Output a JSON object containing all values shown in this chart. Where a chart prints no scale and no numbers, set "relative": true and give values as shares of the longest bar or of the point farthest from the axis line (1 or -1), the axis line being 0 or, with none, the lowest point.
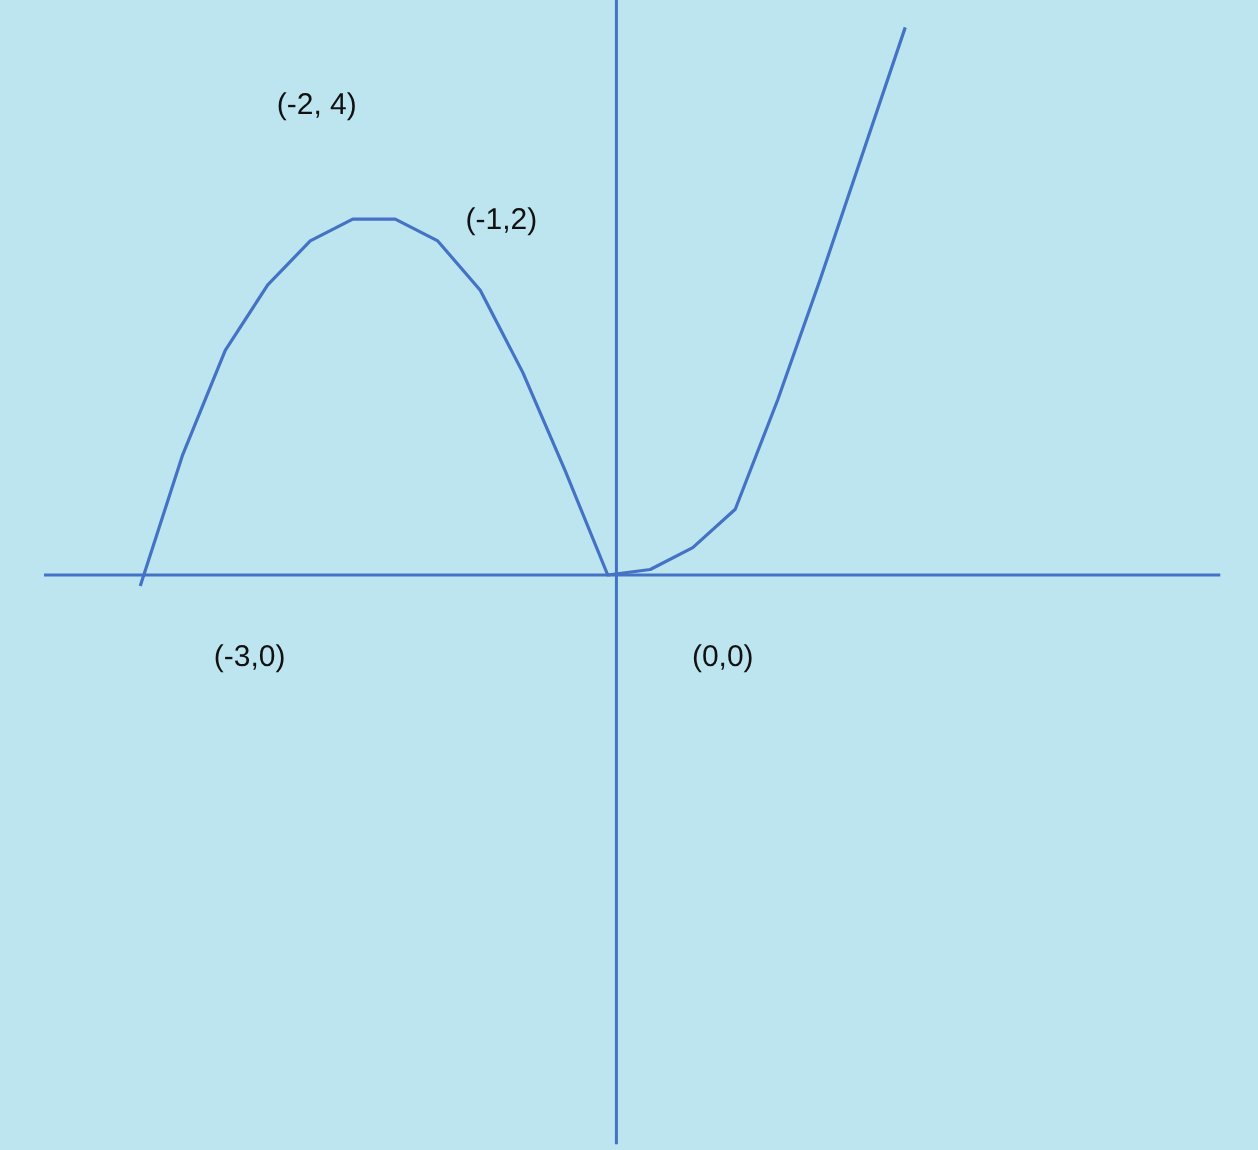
{
  "chart_data": {
    "type": "line",
    "relative": true,
    "categories": [
      null,
      null,
      null,
      null,
      null,
      null,
      null,
      null,
      null,
      null,
      null,
      null,
      null,
      null,
      null,
      null,
      null,
      null,
      null,
      null,
      null,
      null,
      null,
      null,
      null,
      null,
      null,
      null,
      null,
      null
    ],
    "values": [
      null,
      null,
      null,
      -0.02,
      0.22,
      0.41,
      0.53,
      0.61,
      0.65,
      0.65,
      0.61,
      0.52,
      0.37,
      0.19,
      0,
      0.01,
      0.05,
      0.12,
      0.32,
      0.54,
      0.77,
      1,
      null,
      null,
      null,
      null,
      null,
      null,
      null,
      null
    ],
    "color": "#4472c4",
    "ref_lines": [
      {
        "axis": "y",
        "value": 0,
        "color": "#4472c4"
      }
    ],
    "annotations": [
      "(-2, 4)",
      "(-1,2)",
      "(-3,0)",
      "(0,0)"
    ]
  }
}
